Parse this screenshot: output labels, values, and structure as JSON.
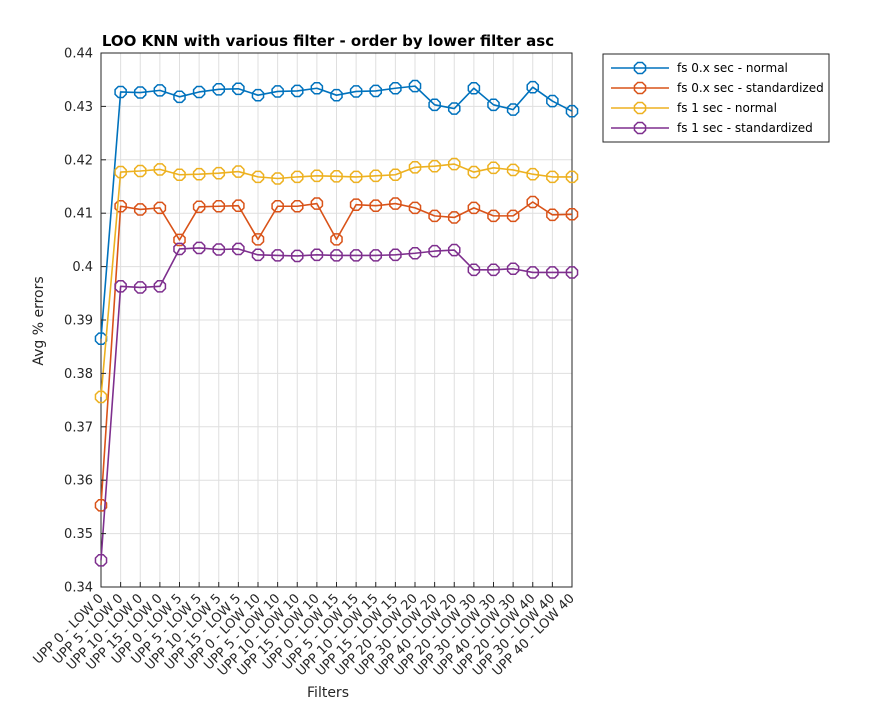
{
  "chart_data": {
    "type": "line",
    "title": "LOO KNN with various filter - order by lower filter asc",
    "xlabel": "Filters",
    "ylabel": "Avg % errors",
    "ylim": [
      0.34,
      0.44
    ],
    "yticks": [
      "0.34",
      "0.35",
      "0.36",
      "0.37",
      "0.38",
      "0.39",
      "0.4",
      "0.41",
      "0.42",
      "0.43",
      "0.44"
    ],
    "grid": true,
    "legend_position": "outside-top-right",
    "categories": [
      "UPP 0 - LOW 0",
      "UPP 5 - LOW 0",
      "UPP 10 - LOW 0",
      "UPP 15 - LOW 0",
      "UPP 0 - LOW 5",
      "UPP 5 - LOW 5",
      "UPP 10 - LOW 5",
      "UPP 15 - LOW 5",
      "UPP 0 - LOW 10",
      "UPP 5 - LOW 10",
      "UPP 10 - LOW 10",
      "UPP 15 - LOW 10",
      "UPP 0 - LOW 15",
      "UPP 5 - LOW 15",
      "UPP 10 - LOW 15",
      "UPP 15 - LOW 15",
      "UPP 20 - LOW 20",
      "UPP 30 - LOW 20",
      "UPP 40 - LOW 20",
      "UPP 20 - LOW 30",
      "UPP 30 - LOW 30",
      "UPP 40 - LOW 30",
      "UPP 20 - LOW 40",
      "UPP 30 - LOW 40",
      "UPP 40 - LOW 40"
    ],
    "series": [
      {
        "name": "fs 0.x sec - normal",
        "color": "#0072BD",
        "values": [
          0.3865,
          0.4327,
          0.4326,
          0.433,
          0.4318,
          0.4327,
          0.4332,
          0.4333,
          0.4321,
          0.4328,
          0.4329,
          0.4334,
          0.4321,
          0.4328,
          0.4329,
          0.4334,
          0.4338,
          0.4303,
          0.4296,
          0.4334,
          0.4303,
          0.4294,
          0.4336,
          0.431,
          0.4291
        ]
      },
      {
        "name": "fs 0.x sec - standardized",
        "color": "#D95319",
        "values": [
          0.3553,
          0.4113,
          0.4107,
          0.411,
          0.405,
          0.4112,
          0.4113,
          0.4114,
          0.4051,
          0.4113,
          0.4113,
          0.4118,
          0.4051,
          0.4116,
          0.4114,
          0.4118,
          0.411,
          0.4095,
          0.4092,
          0.411,
          0.4095,
          0.4095,
          0.4121,
          0.4097,
          0.4098
        ]
      },
      {
        "name": "fs 1 sec - normal",
        "color": "#EDB120",
        "values": [
          0.3756,
          0.4177,
          0.4179,
          0.4182,
          0.4172,
          0.4173,
          0.4175,
          0.4178,
          0.4168,
          0.4165,
          0.4168,
          0.417,
          0.4169,
          0.4168,
          0.417,
          0.4172,
          0.4186,
          0.4188,
          0.4192,
          0.4177,
          0.4185,
          0.4181,
          0.4173,
          0.4168,
          0.4168
        ]
      },
      {
        "name": "fs 1 sec - standardized",
        "color": "#7E2F8E",
        "values": [
          0.345,
          0.3963,
          0.3961,
          0.3963,
          0.4033,
          0.4035,
          0.4032,
          0.4033,
          0.4022,
          0.4021,
          0.402,
          0.4022,
          0.4021,
          0.4021,
          0.4021,
          0.4022,
          0.4025,
          0.4029,
          0.4031,
          0.3994,
          0.3994,
          0.3996,
          0.3989,
          0.3989,
          0.3989
        ]
      }
    ]
  }
}
